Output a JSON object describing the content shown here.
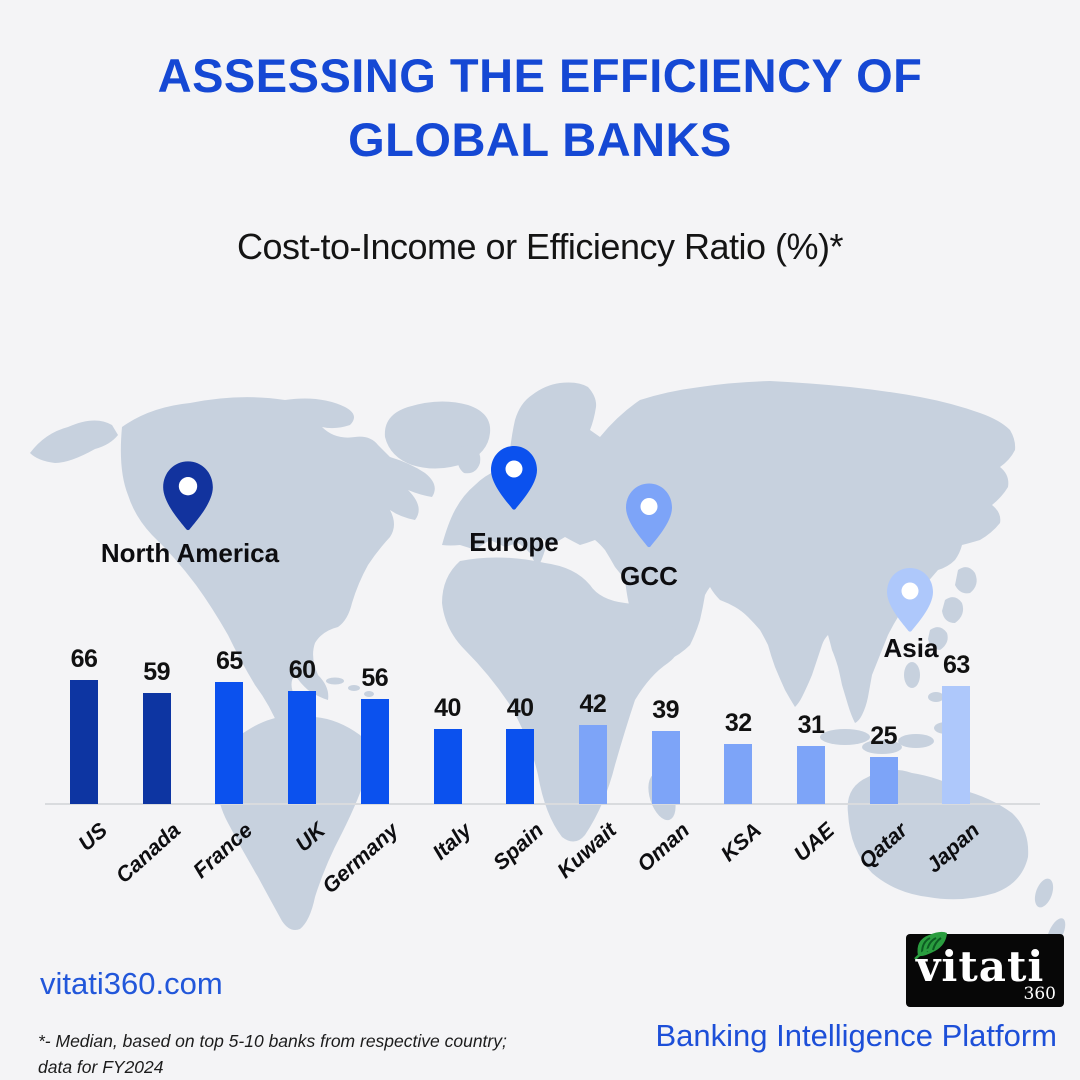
{
  "title": {
    "line1": "ASSESSING THE EFFICIENCY OF",
    "line2": "GLOBAL BANKS"
  },
  "subtitle": "Cost-to-Income or Efficiency Ratio (%)*",
  "map_pins": [
    {
      "label": "North America",
      "color": "#12339e"
    },
    {
      "label": "Europe",
      "color": "#0b51ee"
    },
    {
      "label": "GCC",
      "color": "#7da4f8"
    },
    {
      "label": "Asia",
      "color": "#aec8fb"
    }
  ],
  "chart_data": {
    "type": "bar",
    "title": "Cost-to-Income or Efficiency Ratio (%)*",
    "categories": [
      "US",
      "Canada",
      "France",
      "UK",
      "Germany",
      "Italy",
      "Spain",
      "Kuwait",
      "Oman",
      "KSA",
      "UAE",
      "Qatar",
      "Japan"
    ],
    "values": [
      66,
      59,
      65,
      60,
      56,
      40,
      40,
      42,
      39,
      32,
      31,
      25,
      63
    ],
    "bar_colors": [
      "#0d35a2",
      "#0d35a2",
      "#0b51ee",
      "#0b51ee",
      "#0b51ee",
      "#0b51ee",
      "#0b51ee",
      "#7da4f8",
      "#7da4f8",
      "#7da4f8",
      "#7da4f8",
      "#7da4f8",
      "#aec8fb"
    ],
    "region_of_category": [
      "North America",
      "North America",
      "Europe",
      "Europe",
      "Europe",
      "Europe",
      "Europe",
      "GCC",
      "GCC",
      "GCC",
      "GCC",
      "GCC",
      "Asia"
    ],
    "xlabel": "",
    "ylabel": "Efficiency Ratio (%)",
    "ylim": [
      0,
      70
    ],
    "grid": false,
    "value_labels_shown": true,
    "legend": "none"
  },
  "footer": {
    "website": "vitati360.com",
    "footnote_line1": "*- Median, based on top 5-10 banks from respective country;",
    "footnote_line2": "data for FY2024",
    "logo_text": "vitati",
    "logo_sub": "360",
    "tagline": "Banking Intelligence Platform"
  },
  "colors": {
    "background": "#f4f4f6",
    "map_fill": "#c7d1de",
    "title_blue": "#1548d4",
    "navy_bar": "#0d35a2",
    "blue_bar": "#0b51ee",
    "light_blue_bar": "#7da4f8",
    "lightest_blue_bar": "#aec8fb",
    "logo_leaf_green": "#2a9d3f"
  }
}
